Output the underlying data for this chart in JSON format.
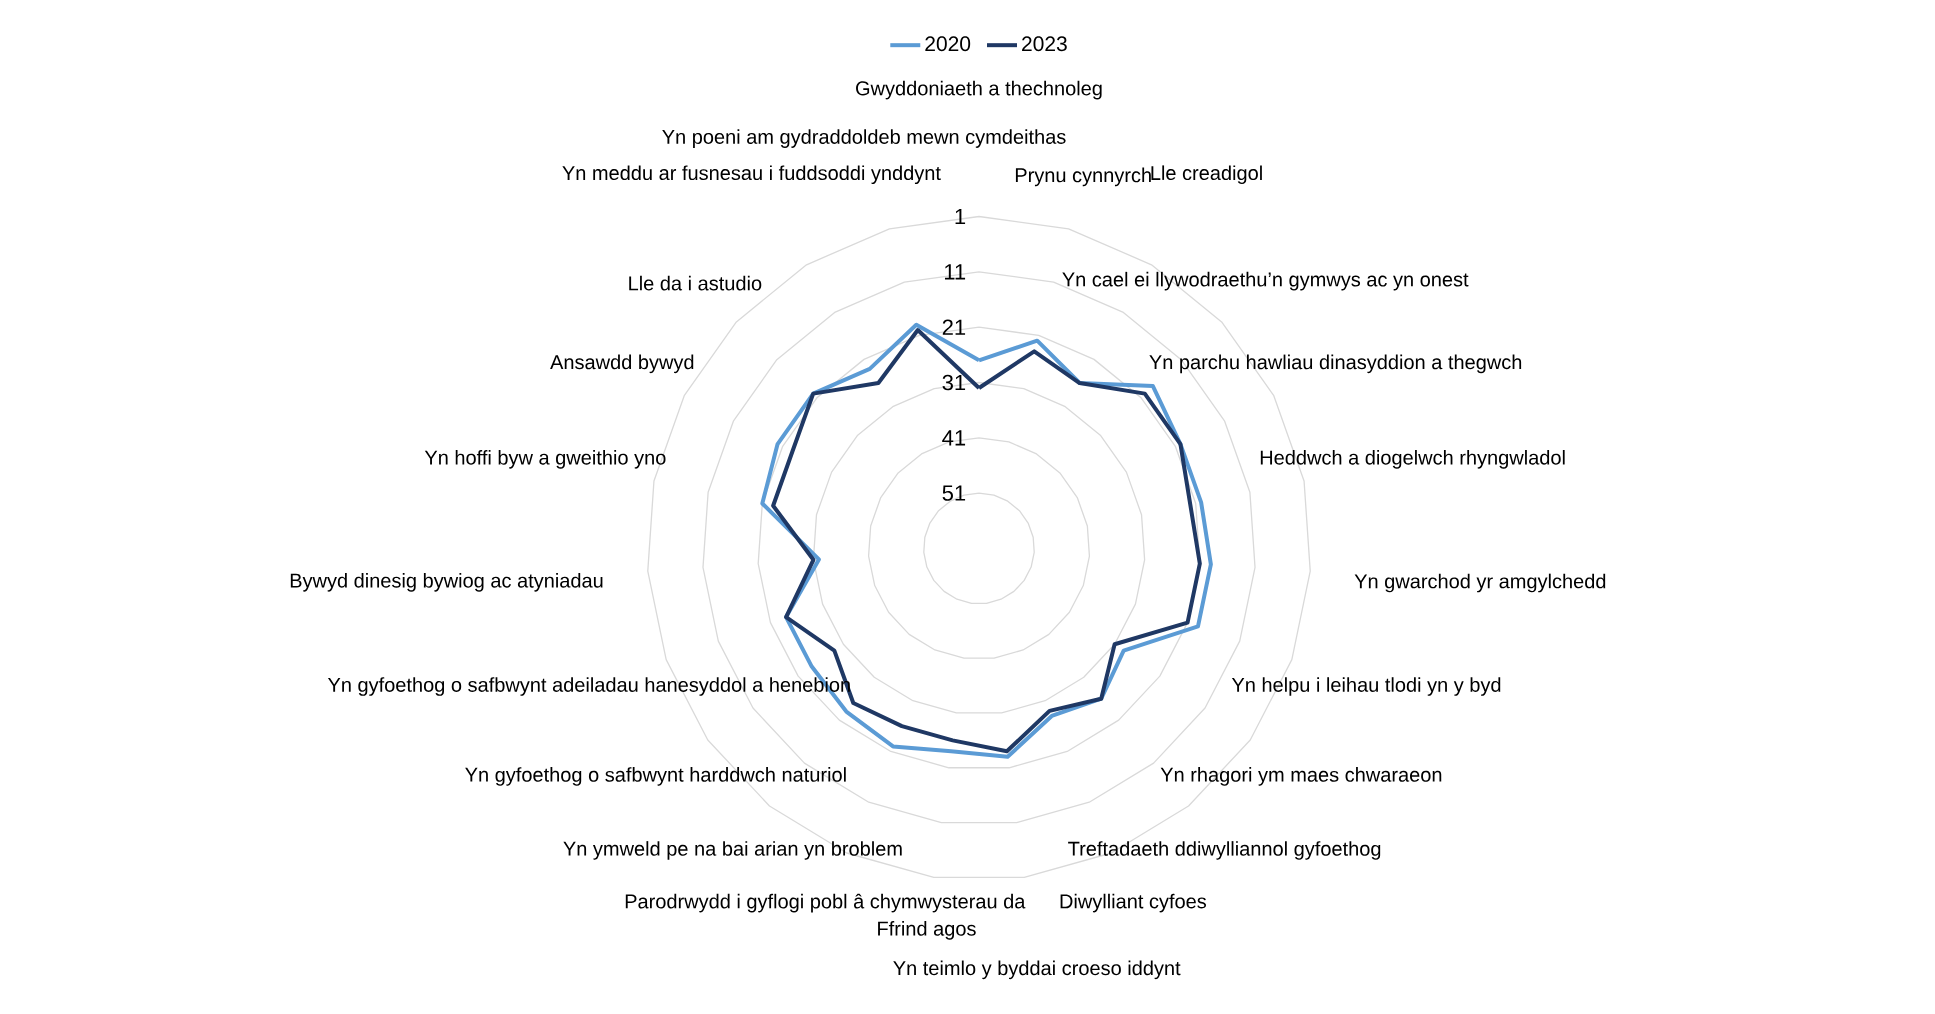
{
  "chart_data": {
    "type": "radar",
    "categories": [
      "Gwyddoniaeth a thechnoleg",
      "Prynu cynnyrch",
      "Lle creadigol",
      "Yn cael ei llywodraethu’n gymwys ac yn onest",
      "Yn parchu hawliau dinasyddion a thegwch",
      "Heddwch a diogelwch rhyngwladol",
      "Yn gwarchod yr amgylchedd",
      "Yn helpu i leihau tlodi yn y byd",
      "Yn rhagori ym maes chwaraeon",
      "Treftadaeth ddiwylliannol gyfoethog",
      "Diwylliant cyfoes",
      "Yn teimlo y byddai croeso iddynt",
      "Ffrind agos",
      "Parodrwydd i gyflogi pobl â chymwysterau da",
      "Yn ymweld pe na bai arian yn broblem",
      "Yn gyfoethog o safbwynt harddwch naturiol",
      "Yn gyfoethog o safbwynt adeiladau hanesyddol a henebion",
      "Bywyd dinesig bywiog ac atyniadau",
      "Yn hoffi byw a gweithio yno",
      "Ansawdd bywyd",
      "Lle da i astudio",
      "Yn meddu ar fusnesau i fuddsoddi ynddynt",
      "Yn poeni am gydraddoldeb mewn cymdeithas"
    ],
    "series": [
      {
        "name": "2020",
        "color": "#5b9bd5",
        "values": [
          27,
          22,
          26,
          18,
          20,
          20,
          19,
          19,
          29,
          26,
          28,
          23,
          24,
          22,
          23,
          24,
          24,
          32,
          21,
          20,
          20,
          23,
          19
        ]
      },
      {
        "name": "2023",
        "color": "#1f3864",
        "values": [
          32,
          24,
          26,
          20,
          20,
          22,
          21,
          21,
          31,
          26,
          29,
          24,
          26,
          26,
          25,
          29,
          24,
          31,
          23,
          23,
          20,
          26,
          20
        ]
      }
    ],
    "ylim": [
      61,
      1
    ],
    "yticks": [
      1,
      11,
      21,
      31,
      41,
      51
    ],
    "grid": true,
    "legend": "top",
    "line_style": "solid",
    "marker": "none"
  }
}
